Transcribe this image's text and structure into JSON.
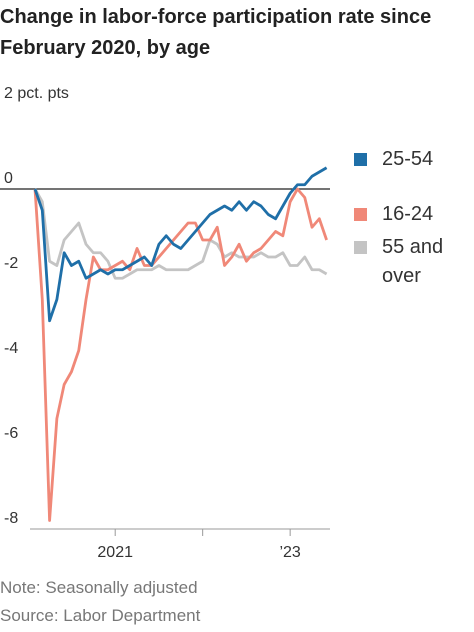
{
  "chart_data": {
    "type": "line",
    "title": "Change in labor-force participation rate since February 2020, by age",
    "note": "Note: Seasonally adjusted",
    "source": "Source: Labor Department",
    "categories": [
      null,
      null,
      null,
      null,
      null,
      null,
      null,
      null,
      null,
      null,
      null,
      "2021",
      null,
      null,
      null,
      null,
      null,
      null,
      null,
      null,
      null,
      null,
      null,
      null,
      null,
      null,
      null,
      null,
      null,
      null,
      null,
      null,
      null,
      null,
      null,
      "’23",
      null,
      null,
      null,
      null,
      null
    ],
    "xticks": [
      11,
      23,
      35
    ],
    "ylim": [
      -8,
      2
    ],
    "yticks": [
      {
        "value": 2,
        "label": "2 pct. pts"
      },
      0,
      -2,
      -4,
      -6,
      -8
    ],
    "grid": false,
    "series": [
      {
        "name": "25-54",
        "color": "#1f6fa8",
        "values": [
          0,
          -0.5,
          -3.1,
          -2.6,
          -1.5,
          -1.8,
          -1.7,
          -2.1,
          -2.0,
          -1.9,
          -2.0,
          -1.9,
          -1.9,
          -1.8,
          -1.7,
          -1.6,
          -1.8,
          -1.3,
          -1.1,
          -1.3,
          -1.4,
          -1.2,
          -1.0,
          -0.8,
          -0.6,
          -0.5,
          -0.4,
          -0.5,
          -0.3,
          -0.5,
          -0.3,
          -0.4,
          -0.6,
          -0.7,
          -0.4,
          -0.1,
          0.1,
          0.1,
          0.3,
          0.4,
          0.5
        ]
      },
      {
        "name": "16-24",
        "color": "#f08878",
        "values": [
          0,
          -2.6,
          -7.8,
          -5.4,
          -4.6,
          -4.3,
          -3.8,
          -2.6,
          -1.6,
          -1.9,
          -1.9,
          -1.8,
          -1.7,
          -1.9,
          -1.4,
          -1.8,
          -1.8,
          -1.6,
          -1.4,
          -1.2,
          -1.0,
          -0.8,
          -0.8,
          -1.2,
          -1.2,
          -0.9,
          -1.8,
          -1.6,
          -1.3,
          -1.7,
          -1.5,
          -1.4,
          -1.2,
          -1.0,
          -1.1,
          -0.3,
          0.0,
          -0.2,
          -0.9,
          -0.7,
          -1.2
        ]
      },
      {
        "name": "55 and over",
        "color": "#c4c4c4",
        "values": [
          0,
          -0.3,
          -1.7,
          -1.8,
          -1.2,
          -1.0,
          -0.8,
          -1.3,
          -1.5,
          -1.5,
          -1.7,
          -2.1,
          -2.1,
          -2.0,
          -1.9,
          -1.9,
          -1.9,
          -1.8,
          -1.9,
          -1.9,
          -1.9,
          -1.9,
          -1.8,
          -1.7,
          -1.2,
          -1.3,
          -1.6,
          -1.5,
          -1.6,
          -1.6,
          -1.6,
          -1.5,
          -1.6,
          -1.6,
          -1.5,
          -1.8,
          -1.8,
          -1.6,
          -1.9,
          -1.9,
          -2.0
        ]
      }
    ]
  }
}
